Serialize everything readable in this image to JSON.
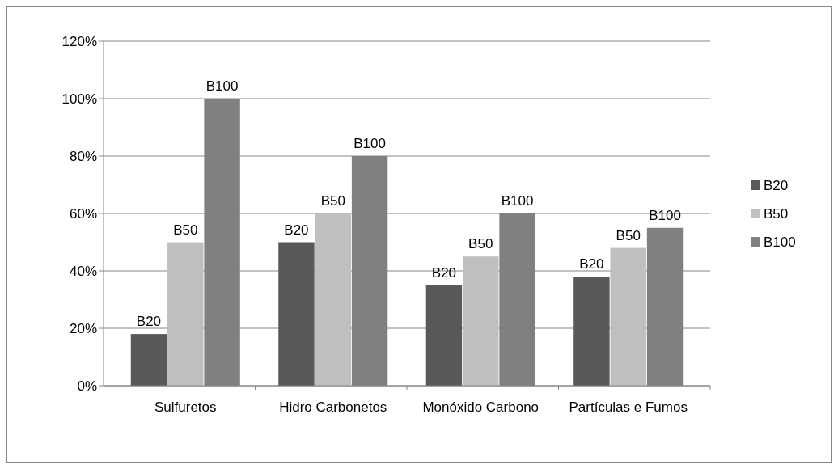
{
  "chart_data": {
    "type": "bar",
    "categories": [
      "Sulfuretos",
      "Hidro Carbonetos",
      "Monóxido Carbono",
      "Partículas e Fumos"
    ],
    "series": [
      {
        "name": "B20",
        "color": "#595959",
        "values": [
          18,
          50,
          35,
          38
        ],
        "value_labels": [
          "B20",
          "B20",
          "B20",
          "B20"
        ]
      },
      {
        "name": "B50",
        "color": "#bfbfbf",
        "values": [
          50,
          60,
          45,
          48
        ],
        "value_labels": [
          "B50",
          "B50",
          "B50",
          "B50"
        ]
      },
      {
        "name": "B100",
        "color": "#808080",
        "values": [
          100,
          80,
          60,
          55
        ],
        "value_labels": [
          "B100",
          "B100",
          "B100",
          "B100"
        ]
      }
    ],
    "ylim": [
      0,
      120
    ],
    "yticks": [
      {
        "value": 0,
        "label": "0%"
      },
      {
        "value": 20,
        "label": "20%"
      },
      {
        "value": 40,
        "label": "40%"
      },
      {
        "value": 60,
        "label": "60%"
      },
      {
        "value": 80,
        "label": "80%"
      },
      {
        "value": 100,
        "label": "100%"
      },
      {
        "value": 120,
        "label": "120%"
      }
    ],
    "grid": "y",
    "legend": "right"
  }
}
